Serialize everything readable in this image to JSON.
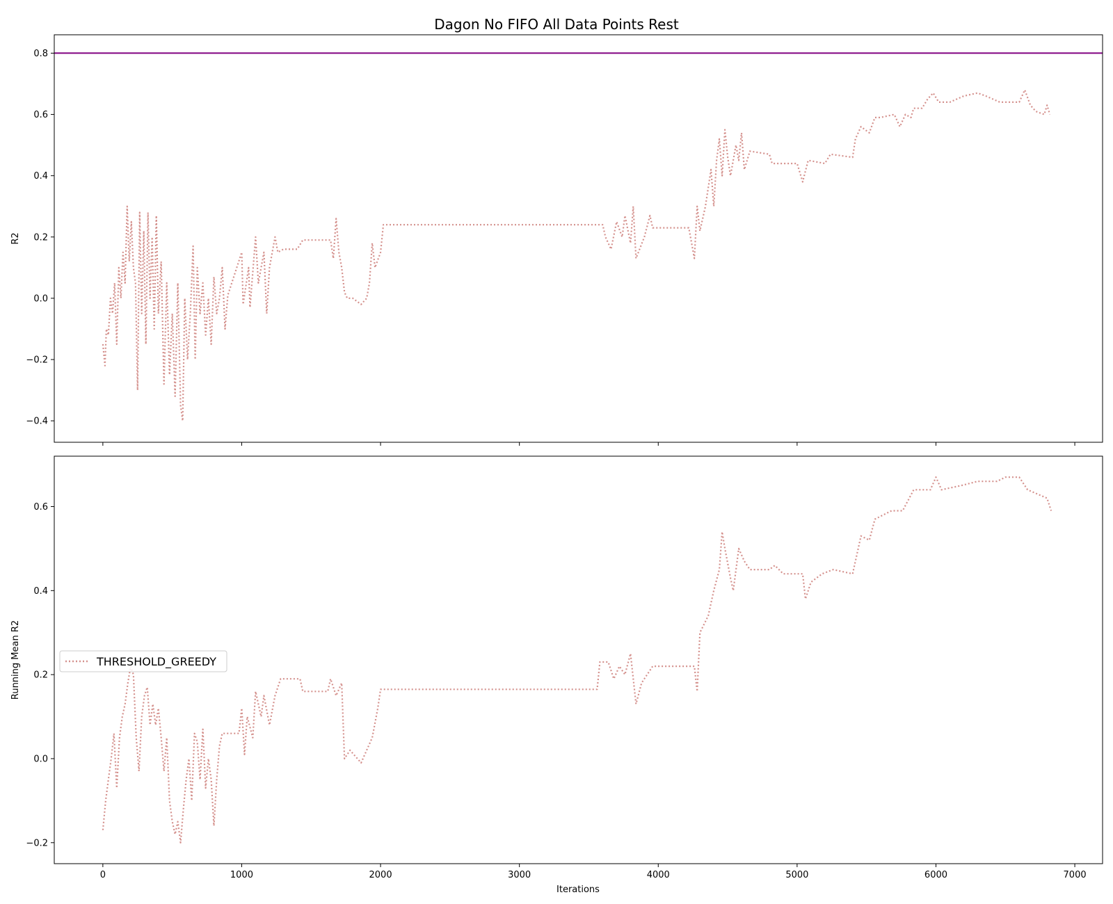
{
  "chart_data": {
    "type": "line",
    "title": "Dagon No FIFO All Data Points Rest",
    "xlabel": "Iterations",
    "xlim": [
      -350,
      7200
    ],
    "xticks": [
      0,
      1000,
      2000,
      3000,
      4000,
      5000,
      6000,
      7000
    ],
    "legend": {
      "placement": "center-left",
      "label": "THRESHOLD_GREEDY"
    },
    "colors": {
      "series": "#d4908c",
      "threshold": "#800080"
    },
    "panels": [
      {
        "ylabel": "R2",
        "ylim": [
          -0.47,
          0.86
        ],
        "yticks": [
          -0.4,
          -0.2,
          0.0,
          0.2,
          0.4,
          0.6,
          0.8
        ],
        "hline": 0.8,
        "series": {
          "name": "THRESHOLD_GREEDY",
          "points": [
            [
              0,
              -0.15
            ],
            [
              15,
              -0.22
            ],
            [
              25,
              -0.1
            ],
            [
              40,
              -0.12
            ],
            [
              55,
              0.0
            ],
            [
              70,
              -0.05
            ],
            [
              85,
              0.05
            ],
            [
              100,
              -0.15
            ],
            [
              115,
              0.1
            ],
            [
              130,
              0.0
            ],
            [
              145,
              0.15
            ],
            [
              160,
              0.05
            ],
            [
              175,
              0.3
            ],
            [
              190,
              0.12
            ],
            [
              205,
              0.25
            ],
            [
              220,
              0.1
            ],
            [
              235,
              0.05
            ],
            [
              250,
              -0.3
            ],
            [
              265,
              0.28
            ],
            [
              280,
              -0.05
            ],
            [
              295,
              0.22
            ],
            [
              310,
              -0.15
            ],
            [
              325,
              0.28
            ],
            [
              340,
              0.0
            ],
            [
              355,
              0.2
            ],
            [
              370,
              -0.1
            ],
            [
              385,
              0.27
            ],
            [
              400,
              -0.05
            ],
            [
              420,
              0.12
            ],
            [
              440,
              -0.28
            ],
            [
              460,
              0.05
            ],
            [
              480,
              -0.25
            ],
            [
              500,
              -0.05
            ],
            [
              520,
              -0.32
            ],
            [
              540,
              0.05
            ],
            [
              560,
              -0.35
            ],
            [
              575,
              -0.4
            ],
            [
              590,
              0.0
            ],
            [
              610,
              -0.2
            ],
            [
              630,
              -0.05
            ],
            [
              650,
              0.17
            ],
            [
              665,
              -0.2
            ],
            [
              680,
              0.1
            ],
            [
              700,
              -0.05
            ],
            [
              720,
              0.05
            ],
            [
              740,
              -0.12
            ],
            [
              760,
              0.0
            ],
            [
              780,
              -0.15
            ],
            [
              800,
              0.07
            ],
            [
              820,
              -0.05
            ],
            [
              840,
              0.0
            ],
            [
              860,
              0.1
            ],
            [
              880,
              -0.1
            ],
            [
              900,
              0.01
            ],
            [
              1000,
              0.15
            ],
            [
              1010,
              -0.02
            ],
            [
              1050,
              0.1
            ],
            [
              1060,
              -0.03
            ],
            [
              1100,
              0.2
            ],
            [
              1120,
              0.05
            ],
            [
              1160,
              0.15
            ],
            [
              1180,
              -0.05
            ],
            [
              1200,
              0.1
            ],
            [
              1240,
              0.2
            ],
            [
              1260,
              0.15
            ],
            [
              1300,
              0.16
            ],
            [
              1400,
              0.16
            ],
            [
              1440,
              0.19
            ],
            [
              1640,
              0.19
            ],
            [
              1660,
              0.13
            ],
            [
              1680,
              0.26
            ],
            [
              1700,
              0.15
            ],
            [
              1720,
              0.1
            ],
            [
              1740,
              0.02
            ],
            [
              1760,
              0.0
            ],
            [
              1800,
              0.0
            ],
            [
              1860,
              -0.02
            ],
            [
              1900,
              0.0
            ],
            [
              1920,
              0.05
            ],
            [
              1940,
              0.18
            ],
            [
              1960,
              0.1
            ],
            [
              2000,
              0.15
            ],
            [
              2020,
              0.24
            ],
            [
              3600,
              0.24
            ],
            [
              3620,
              0.2
            ],
            [
              3660,
              0.16
            ],
            [
              3700,
              0.25
            ],
            [
              3740,
              0.2
            ],
            [
              3760,
              0.27
            ],
            [
              3800,
              0.18
            ],
            [
              3820,
              0.3
            ],
            [
              3840,
              0.13
            ],
            [
              3900,
              0.2
            ],
            [
              3940,
              0.27
            ],
            [
              3960,
              0.23
            ],
            [
              4220,
              0.23
            ],
            [
              4260,
              0.13
            ],
            [
              4280,
              0.3
            ],
            [
              4300,
              0.22
            ],
            [
              4340,
              0.3
            ],
            [
              4380,
              0.42
            ],
            [
              4400,
              0.3
            ],
            [
              4420,
              0.45
            ],
            [
              4440,
              0.52
            ],
            [
              4460,
              0.4
            ],
            [
              4480,
              0.55
            ],
            [
              4500,
              0.46
            ],
            [
              4520,
              0.4
            ],
            [
              4560,
              0.5
            ],
            [
              4580,
              0.45
            ],
            [
              4600,
              0.54
            ],
            [
              4620,
              0.42
            ],
            [
              4660,
              0.48
            ],
            [
              4800,
              0.47
            ],
            [
              4820,
              0.44
            ],
            [
              4860,
              0.44
            ],
            [
              5000,
              0.44
            ],
            [
              5040,
              0.38
            ],
            [
              5080,
              0.45
            ],
            [
              5200,
              0.44
            ],
            [
              5240,
              0.47
            ],
            [
              5400,
              0.46
            ],
            [
              5420,
              0.52
            ],
            [
              5460,
              0.56
            ],
            [
              5520,
              0.54
            ],
            [
              5560,
              0.59
            ],
            [
              5600,
              0.59
            ],
            [
              5700,
              0.6
            ],
            [
              5740,
              0.56
            ],
            [
              5780,
              0.6
            ],
            [
              5820,
              0.59
            ],
            [
              5840,
              0.62
            ],
            [
              5900,
              0.62
            ],
            [
              5940,
              0.65
            ],
            [
              5980,
              0.67
            ],
            [
              6020,
              0.64
            ],
            [
              6100,
              0.64
            ],
            [
              6200,
              0.66
            ],
            [
              6300,
              0.67
            ],
            [
              6360,
              0.66
            ],
            [
              6460,
              0.64
            ],
            [
              6600,
              0.64
            ],
            [
              6640,
              0.68
            ],
            [
              6680,
              0.63
            ],
            [
              6720,
              0.61
            ],
            [
              6780,
              0.6
            ],
            [
              6800,
              0.63
            ],
            [
              6820,
              0.6
            ]
          ]
        }
      },
      {
        "ylabel": "Running Mean R2",
        "ylim": [
          -0.25,
          0.72
        ],
        "yticks": [
          -0.2,
          0.0,
          0.2,
          0.4,
          0.6
        ],
        "series": {
          "name": "THRESHOLD_GREEDY",
          "points": [
            [
              0,
              -0.17
            ],
            [
              20,
              -0.1
            ],
            [
              40,
              -0.05
            ],
            [
              60,
              0.0
            ],
            [
              80,
              0.06
            ],
            [
              100,
              -0.07
            ],
            [
              120,
              0.05
            ],
            [
              140,
              0.1
            ],
            [
              160,
              0.13
            ],
            [
              180,
              0.18
            ],
            [
              200,
              0.22
            ],
            [
              220,
              0.2
            ],
            [
              240,
              0.05
            ],
            [
              260,
              -0.03
            ],
            [
              280,
              0.1
            ],
            [
              300,
              0.15
            ],
            [
              320,
              0.17
            ],
            [
              340,
              0.08
            ],
            [
              360,
              0.13
            ],
            [
              380,
              0.08
            ],
            [
              400,
              0.12
            ],
            [
              420,
              0.05
            ],
            [
              440,
              -0.03
            ],
            [
              460,
              0.05
            ],
            [
              480,
              -0.1
            ],
            [
              500,
              -0.15
            ],
            [
              520,
              -0.18
            ],
            [
              540,
              -0.15
            ],
            [
              560,
              -0.2
            ],
            [
              580,
              -0.12
            ],
            [
              600,
              -0.05
            ],
            [
              620,
              0.0
            ],
            [
              640,
              -0.1
            ],
            [
              660,
              0.06
            ],
            [
              680,
              0.04
            ],
            [
              700,
              -0.05
            ],
            [
              720,
              0.07
            ],
            [
              740,
              -0.07
            ],
            [
              760,
              0.0
            ],
            [
              780,
              -0.05
            ],
            [
              800,
              -0.16
            ],
            [
              820,
              -0.05
            ],
            [
              840,
              0.03
            ],
            [
              860,
              0.06
            ],
            [
              980,
              0.06
            ],
            [
              1000,
              0.12
            ],
            [
              1020,
              0.01
            ],
            [
              1040,
              0.1
            ],
            [
              1080,
              0.05
            ],
            [
              1100,
              0.16
            ],
            [
              1140,
              0.1
            ],
            [
              1160,
              0.15
            ],
            [
              1200,
              0.08
            ],
            [
              1240,
              0.15
            ],
            [
              1280,
              0.19
            ],
            [
              1420,
              0.19
            ],
            [
              1440,
              0.16
            ],
            [
              1620,
              0.16
            ],
            [
              1640,
              0.19
            ],
            [
              1680,
              0.15
            ],
            [
              1720,
              0.18
            ],
            [
              1740,
              0.0
            ],
            [
              1780,
              0.02
            ],
            [
              1860,
              -0.01
            ],
            [
              1940,
              0.05
            ],
            [
              1980,
              0.12
            ],
            [
              2000,
              0.165
            ],
            [
              3560,
              0.165
            ],
            [
              3580,
              0.23
            ],
            [
              3640,
              0.23
            ],
            [
              3680,
              0.19
            ],
            [
              3720,
              0.22
            ],
            [
              3760,
              0.2
            ],
            [
              3800,
              0.25
            ],
            [
              3840,
              0.13
            ],
            [
              3880,
              0.18
            ],
            [
              3920,
              0.2
            ],
            [
              3960,
              0.22
            ],
            [
              4260,
              0.22
            ],
            [
              4280,
              0.16
            ],
            [
              4300,
              0.3
            ],
            [
              4360,
              0.34
            ],
            [
              4400,
              0.4
            ],
            [
              4440,
              0.45
            ],
            [
              4460,
              0.54
            ],
            [
              4480,
              0.5
            ],
            [
              4520,
              0.43
            ],
            [
              4540,
              0.4
            ],
            [
              4580,
              0.5
            ],
            [
              4620,
              0.47
            ],
            [
              4660,
              0.45
            ],
            [
              4800,
              0.45
            ],
            [
              4840,
              0.46
            ],
            [
              4900,
              0.44
            ],
            [
              5040,
              0.44
            ],
            [
              5060,
              0.38
            ],
            [
              5100,
              0.42
            ],
            [
              5180,
              0.44
            ],
            [
              5260,
              0.45
            ],
            [
              5400,
              0.44
            ],
            [
              5460,
              0.53
            ],
            [
              5520,
              0.52
            ],
            [
              5560,
              0.57
            ],
            [
              5680,
              0.59
            ],
            [
              5760,
              0.59
            ],
            [
              5840,
              0.64
            ],
            [
              5960,
              0.64
            ],
            [
              6000,
              0.67
            ],
            [
              6040,
              0.64
            ],
            [
              6180,
              0.65
            ],
            [
              6300,
              0.66
            ],
            [
              6440,
              0.66
            ],
            [
              6500,
              0.67
            ],
            [
              6600,
              0.67
            ],
            [
              6660,
              0.64
            ],
            [
              6800,
              0.62
            ],
            [
              6830,
              0.59
            ]
          ]
        }
      }
    ]
  }
}
